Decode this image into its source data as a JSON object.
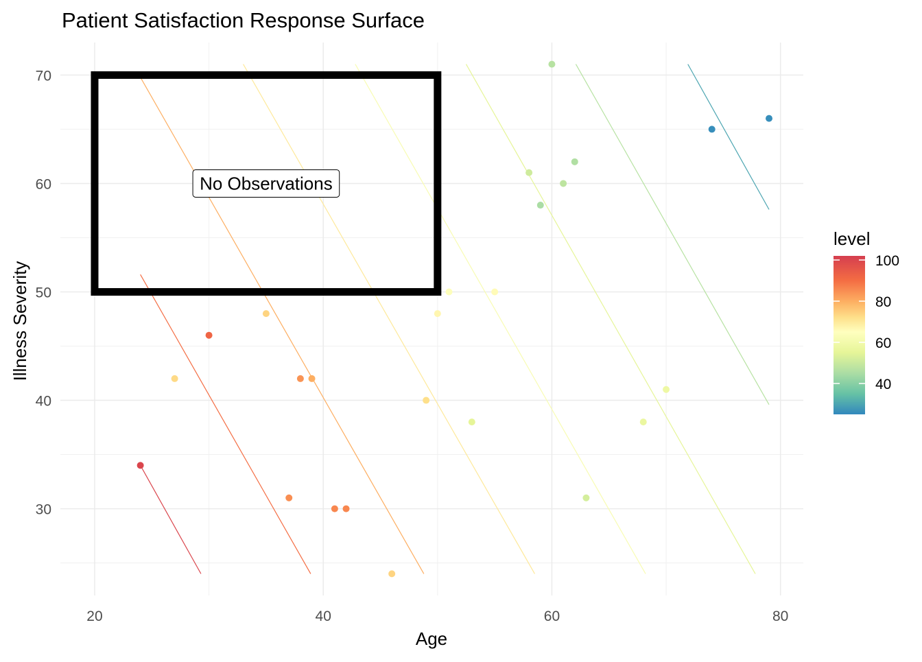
{
  "chart_data": {
    "type": "scatter",
    "title": "Patient Satisfaction Response Surface",
    "xlabel": "Age",
    "ylabel": "Illness Severity",
    "xlim": [
      17,
      82
    ],
    "ylim": [
      22,
      73
    ],
    "x_ticks": [
      20,
      40,
      60,
      80
    ],
    "y_ticks": [
      30,
      40,
      50,
      60,
      70
    ],
    "grid": true,
    "legend": {
      "title": "level",
      "position": "right",
      "type": "colorbar",
      "range": [
        25,
        102
      ],
      "ticks": [
        40,
        60,
        80,
        100
      ],
      "palette": [
        "#3288bd",
        "#66c2a5",
        "#abdda4",
        "#e6f598",
        "#ffffbf",
        "#fee08b",
        "#fdae61",
        "#f46d43",
        "#d53e4f"
      ],
      "palette_stops": [
        25,
        35,
        45,
        55,
        65,
        72,
        80,
        90,
        102
      ]
    },
    "points": [
      {
        "x": 24,
        "y": 34,
        "level": 100
      },
      {
        "x": 30,
        "y": 46,
        "level": 92
      },
      {
        "x": 27,
        "y": 42,
        "level": 73
      },
      {
        "x": 35,
        "y": 48,
        "level": 74
      },
      {
        "x": 38,
        "y": 42,
        "level": 84
      },
      {
        "x": 39,
        "y": 42,
        "level": 80
      },
      {
        "x": 37,
        "y": 31,
        "level": 85
      },
      {
        "x": 41,
        "y": 30,
        "level": 86
      },
      {
        "x": 42,
        "y": 30,
        "level": 86
      },
      {
        "x": 46,
        "y": 24,
        "level": 74
      },
      {
        "x": 49,
        "y": 40,
        "level": 72
      },
      {
        "x": 50,
        "y": 48,
        "level": 67
      },
      {
        "x": 51,
        "y": 50,
        "level": 64
      },
      {
        "x": 55,
        "y": 50,
        "level": 66
      },
      {
        "x": 53,
        "y": 38,
        "level": 55
      },
      {
        "x": 58,
        "y": 61,
        "level": 51
      },
      {
        "x": 59,
        "y": 58,
        "level": 45
      },
      {
        "x": 60,
        "y": 71,
        "level": 47
      },
      {
        "x": 61,
        "y": 60,
        "level": 48
      },
      {
        "x": 62,
        "y": 62,
        "level": 46
      },
      {
        "x": 63,
        "y": 31,
        "level": 52
      },
      {
        "x": 68,
        "y": 38,
        "level": 57
      },
      {
        "x": 70,
        "y": 41,
        "level": 58
      },
      {
        "x": 74,
        "y": 65,
        "level": 26
      },
      {
        "x": 79,
        "y": 66,
        "level": 26
      }
    ],
    "contours": [
      {
        "level": 100,
        "x": [
          24,
          29.3
        ],
        "y": [
          34,
          24
        ]
      },
      {
        "level": 90,
        "x": [
          24,
          38.9
        ],
        "y": [
          51.6,
          24
        ]
      },
      {
        "level": 80,
        "x": [
          24,
          48.8
        ],
        "y": [
          69.8,
          24
        ]
      },
      {
        "level": 70,
        "x": [
          33,
          58.5
        ],
        "y": [
          71,
          24
        ]
      },
      {
        "level": 62,
        "x": [
          42.8,
          68.2
        ],
        "y": [
          71,
          24
        ]
      },
      {
        "level": 55,
        "x": [
          52.5,
          77.8
        ],
        "y": [
          71,
          24
        ]
      },
      {
        "level": 47,
        "x": [
          62.1,
          79
        ],
        "y": [
          71,
          39.6
        ]
      },
      {
        "level": 30,
        "x": [
          71.9,
          79
        ],
        "y": [
          71,
          57.6
        ]
      }
    ],
    "annotations": [
      {
        "type": "rect",
        "x": [
          20,
          50
        ],
        "y": [
          50,
          70
        ]
      },
      {
        "type": "label",
        "text": "No Observations",
        "x": 35,
        "y": 60
      }
    ]
  }
}
